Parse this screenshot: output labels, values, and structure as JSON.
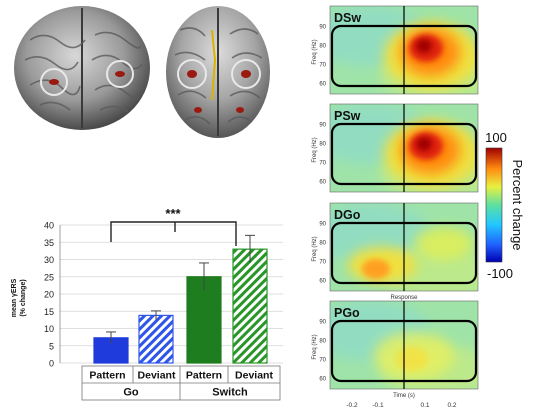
{
  "chart_data": {
    "type": "bar",
    "significance": "***",
    "ylabel_line1": "mean γERS",
    "ylabel_line2": "(% change)",
    "ylim": [
      0,
      40
    ],
    "yticks": [
      "0",
      "5",
      "10",
      "15",
      "20",
      "25",
      "30",
      "35",
      "40"
    ],
    "categories": [
      "Pattern",
      "Deviant",
      "Pattern",
      "Deviant"
    ],
    "groups": [
      "Go",
      "Switch"
    ],
    "values": [
      7.3,
      13.8,
      25.0,
      33.0
    ],
    "errors": [
      1.7,
      1.3,
      4.0,
      4.0
    ],
    "bar_colors": [
      "#1f3bdb",
      "#2f56e8",
      "#1e7d1e",
      "#2a962a"
    ],
    "hatched": [
      false,
      true,
      false,
      true
    ],
    "grid": true
  },
  "spectrograms": {
    "panels": [
      {
        "label": "DSw",
        "blob_strength": 1.0
      },
      {
        "label": "PSw",
        "blob_strength": 0.95
      },
      {
        "label": "DGo",
        "blob_strength": 0.35
      },
      {
        "label": "PGo",
        "blob_strength": 0.2
      }
    ],
    "ylabel": "Freq (Hz)",
    "yticks": [
      "90",
      "80",
      "70",
      "60"
    ],
    "xticks": [
      "-0.2",
      "-0.1",
      "0.1",
      "0.2"
    ],
    "response_label": "Response",
    "xlabel": "Time (s)"
  },
  "colorbar": {
    "max_label": "100",
    "min_label": "-100",
    "title": "Percent change"
  }
}
